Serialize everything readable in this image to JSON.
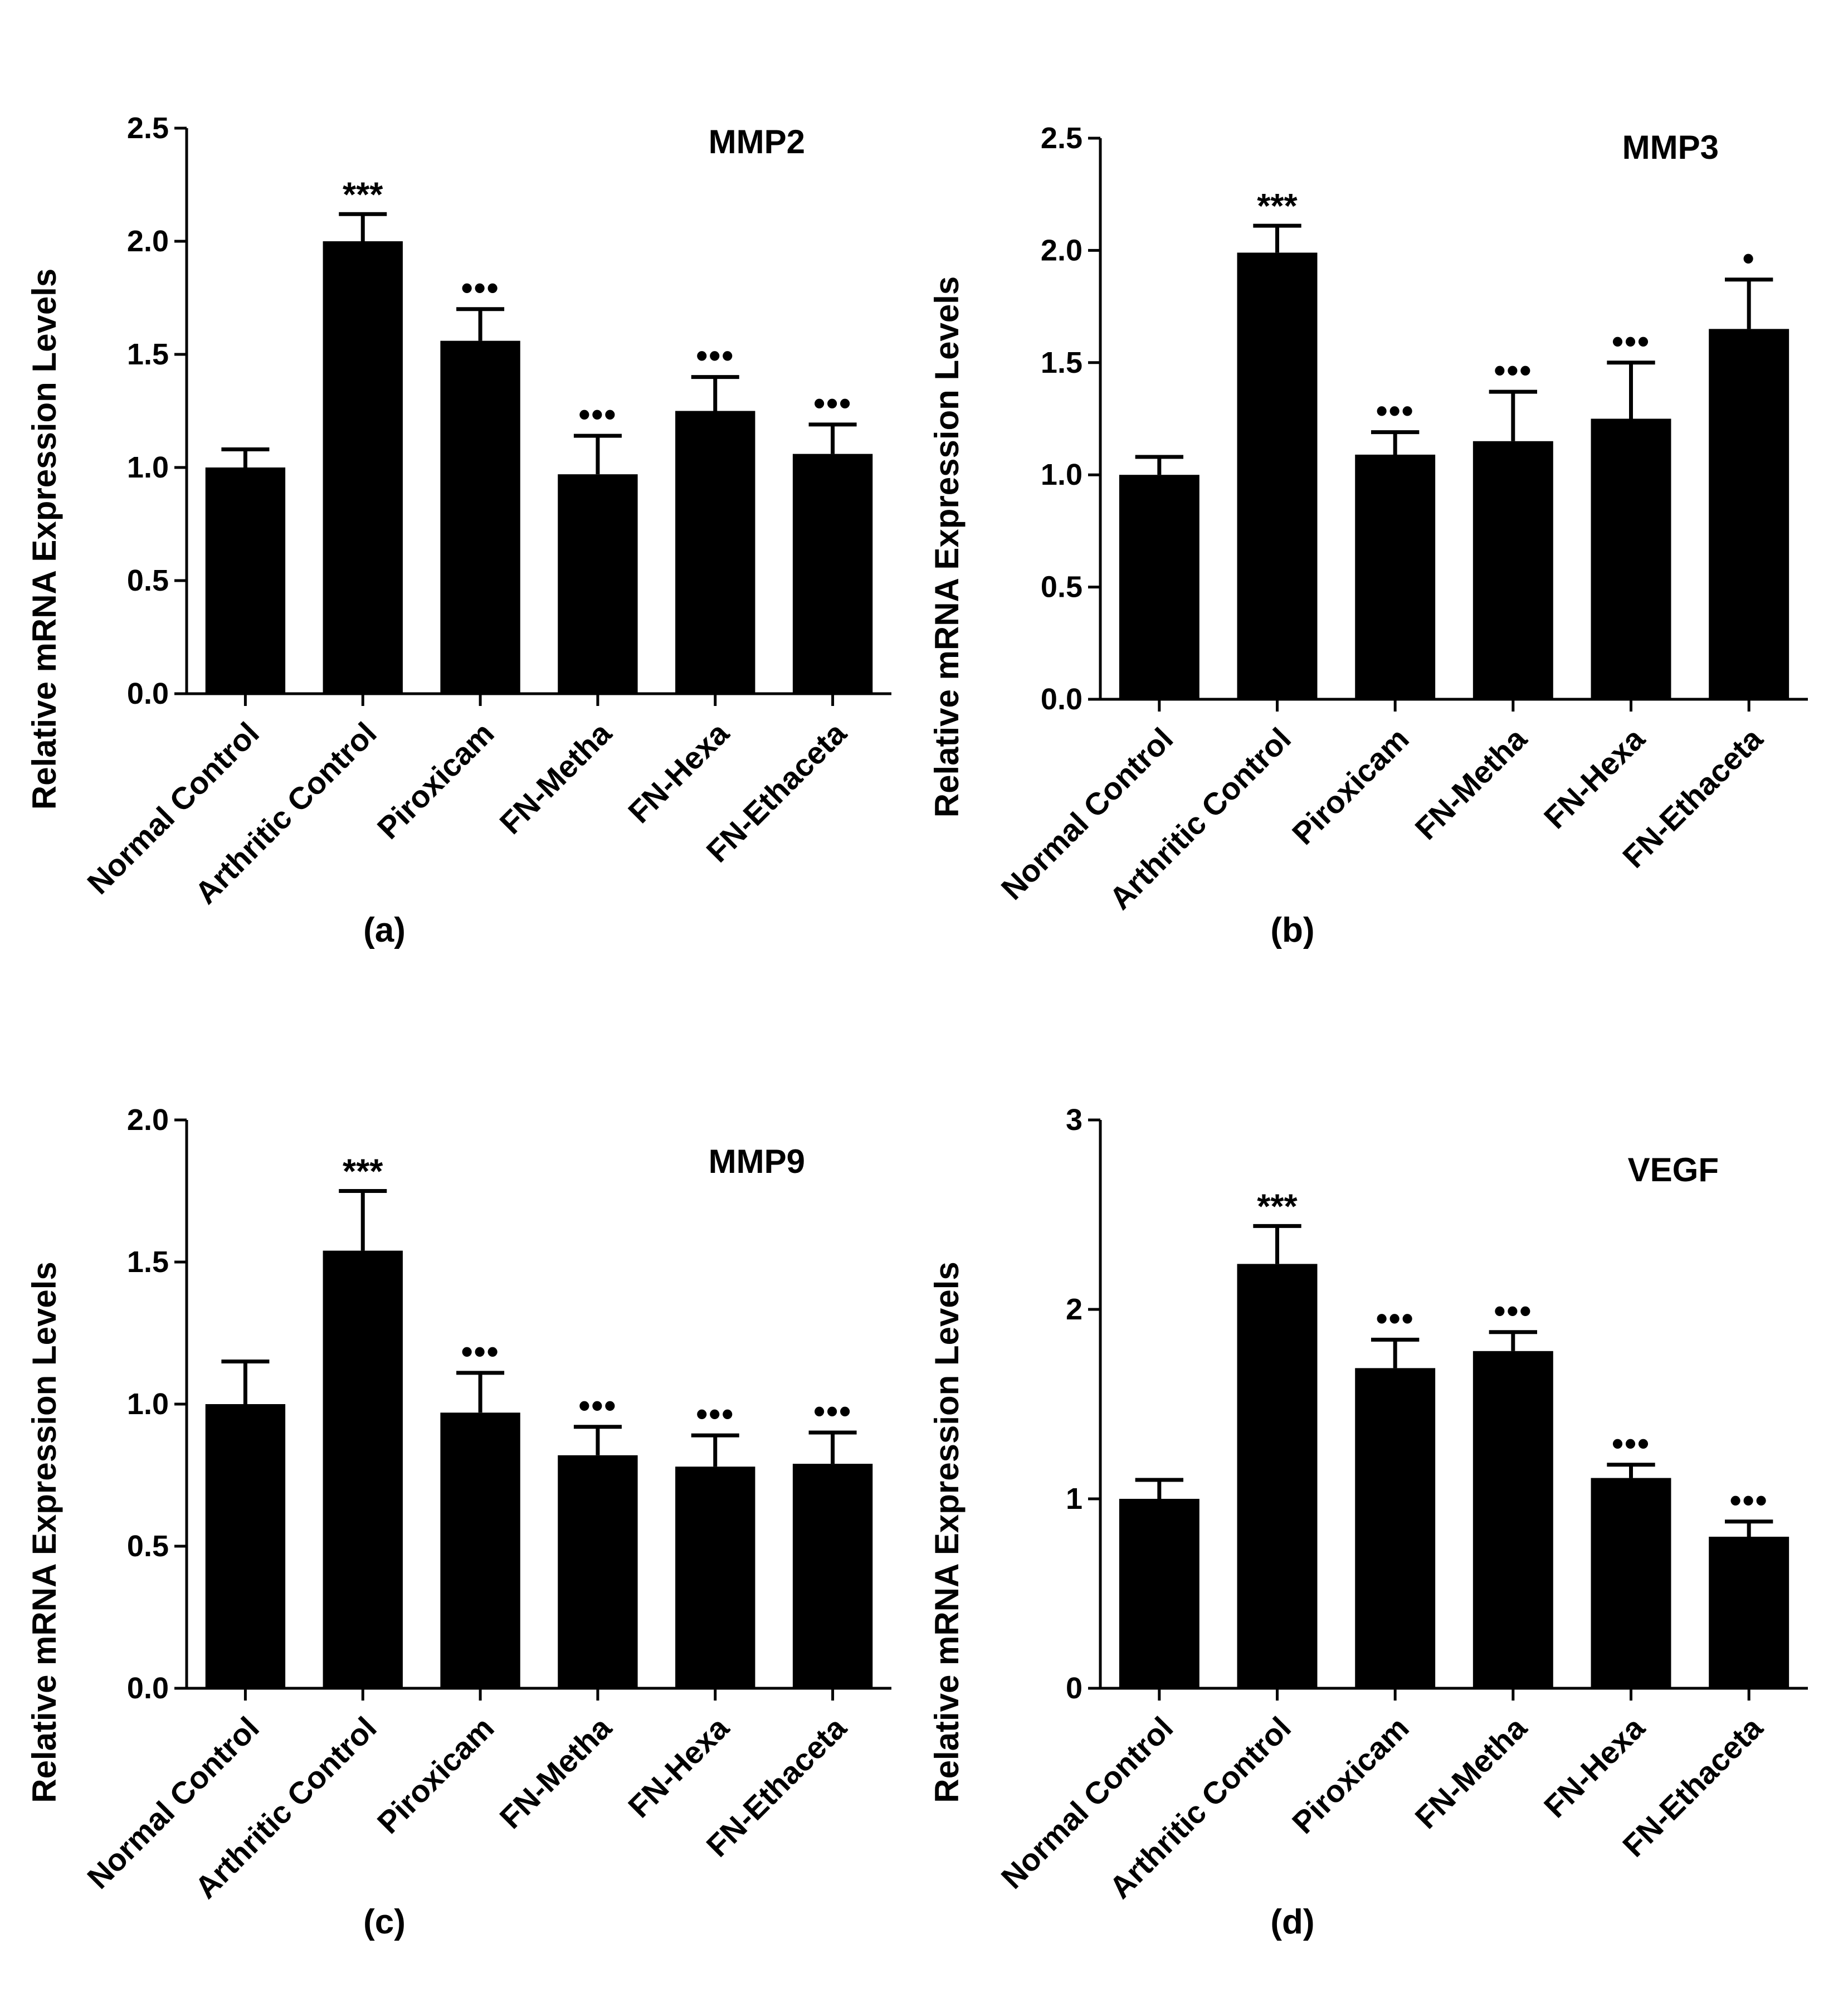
{
  "colors": {
    "bar": "#000000",
    "background": "#ffffff"
  },
  "chart_data": [
    {
      "type": "bar",
      "title": "MMP2",
      "panel_label": "(a)",
      "xlabel": "",
      "ylabel": "Relative mRNA Expression Levels",
      "ylim": [
        0,
        2.5
      ],
      "yticks": [
        "0.0",
        "0.5",
        "1.0",
        "1.5",
        "2.0",
        "2.5"
      ],
      "categories": [
        "Normal Control",
        "Arthritic Control",
        "Piroxicam",
        "FN-Metha",
        "FN-Hexa",
        "FN-Ethaceta"
      ],
      "values": [
        1.0,
        2.0,
        1.56,
        0.97,
        1.25,
        1.06
      ],
      "errors": [
        0.08,
        0.12,
        0.14,
        0.17,
        0.15,
        0.13
      ],
      "annotations": [
        "",
        "***",
        "•••",
        "•••",
        "•••",
        "•••"
      ]
    },
    {
      "type": "bar",
      "title": "MMP3",
      "panel_label": "(b)",
      "xlabel": "",
      "ylabel": "Relative mRNA Expression Levels",
      "ylim": [
        0,
        2.5
      ],
      "yticks": [
        "0.0",
        "0.5",
        "1.0",
        "1.5",
        "2.0",
        "2.5"
      ],
      "categories": [
        "Normal Control",
        "Arthritic Control",
        "Piroxicam",
        "FN-Metha",
        "FN-Hexa",
        "FN-Ethaceta"
      ],
      "values": [
        1.0,
        1.99,
        1.09,
        1.15,
        1.25,
        1.65
      ],
      "errors": [
        0.08,
        0.12,
        0.1,
        0.22,
        0.25,
        0.22
      ],
      "annotations": [
        "",
        "***",
        "•••",
        "•••",
        "•••",
        "•"
      ]
    },
    {
      "type": "bar",
      "title": "MMP9",
      "panel_label": "(c)",
      "xlabel": "",
      "ylabel": "Relative mRNA Expression Levels",
      "ylim": [
        0,
        2.0
      ],
      "yticks": [
        "0.0",
        "0.5",
        "1.0",
        "1.5",
        "2.0"
      ],
      "categories": [
        "Normal Control",
        "Arthritic Control",
        "Piroxicam",
        "FN-Metha",
        "FN-Hexa",
        "FN-Ethaceta"
      ],
      "values": [
        1.0,
        1.54,
        0.97,
        0.82,
        0.78,
        0.79
      ],
      "errors": [
        0.15,
        0.21,
        0.14,
        0.1,
        0.11,
        0.11
      ],
      "annotations": [
        "",
        "***",
        "•••",
        "•••",
        "•••",
        "•••"
      ]
    },
    {
      "type": "bar",
      "title": "VEGF",
      "panel_label": "(d)",
      "xlabel": "",
      "ylabel": "Relative mRNA Expression Levels",
      "ylim": [
        0,
        3
      ],
      "yticks": [
        "0",
        "1",
        "2",
        "3"
      ],
      "categories": [
        "Normal Control",
        "Arthritic Control",
        "Piroxicam",
        "FN-Metha",
        "FN-Hexa",
        "FN-Ethaceta"
      ],
      "values": [
        1.0,
        2.24,
        1.69,
        1.78,
        1.11,
        0.8
      ],
      "errors": [
        0.1,
        0.2,
        0.15,
        0.1,
        0.07,
        0.08
      ],
      "annotations": [
        "",
        "***",
        "•••",
        "•••",
        "•••",
        "•••"
      ]
    }
  ]
}
